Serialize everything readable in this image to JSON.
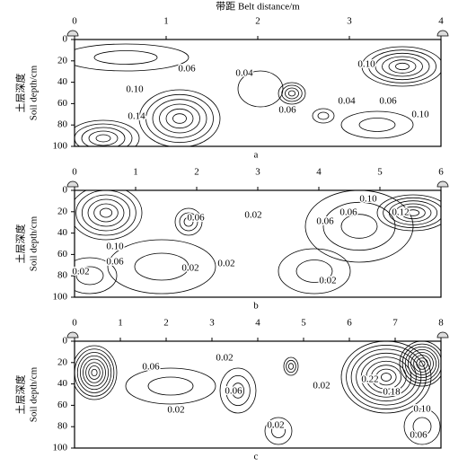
{
  "chart_data": [
    {
      "type": "contour",
      "x_label": "带距 Belt distance/m",
      "y_label": "土层深度",
      "y_label_en": "Soil depth/cm",
      "panel_label": "a",
      "xlim": [
        0,
        4
      ],
      "xticks": [
        0,
        1,
        2,
        3,
        4
      ],
      "ylim": [
        0,
        100
      ],
      "yticks": [
        0,
        20,
        40,
        60,
        80,
        100
      ],
      "values": [
        0.06,
        0.04,
        0.1,
        0.14,
        0.06,
        0.04,
        0.06,
        0.1,
        0.1
      ],
      "value_labels": [
        "0.06",
        "0.04",
        "0.10",
        "0.14",
        "0.06",
        "0.04",
        "0.06",
        "0.10",
        "0.10"
      ]
    },
    {
      "type": "contour",
      "y_label": "土层深度",
      "y_label_en": "Soil depth/cm",
      "panel_label": "b",
      "xlim": [
        0,
        6
      ],
      "xticks": [
        0,
        1,
        2,
        3,
        4,
        5,
        6
      ],
      "ylim": [
        0,
        100
      ],
      "yticks": [
        0,
        20,
        40,
        60,
        80,
        100
      ],
      "values": [
        0.06,
        0.02,
        0.06,
        0.06,
        0.1,
        0.12,
        0.1,
        0.06,
        0.02,
        0.02,
        0.02,
        0.02
      ],
      "value_labels": [
        "0.06",
        "0.02",
        "0.06",
        "0.06",
        "0.10",
        "0.12",
        "0.10",
        "0.06",
        "0.02",
        "0.02",
        "0.02",
        "0.02"
      ]
    },
    {
      "type": "contour",
      "y_label": "土层深度",
      "y_label_en": "Soil depth/cm",
      "panel_label": "c",
      "xlim": [
        0,
        8
      ],
      "xticks": [
        0,
        1,
        2,
        3,
        4,
        5,
        6,
        7,
        8
      ],
      "ylim": [
        0,
        100
      ],
      "yticks": [
        0,
        20,
        40,
        60,
        80,
        100
      ],
      "values": [
        0.02,
        0.06,
        0.06,
        0.02,
        0.02,
        0.22,
        0.18,
        0.1,
        0.02,
        0.06
      ],
      "value_labels": [
        "0.02",
        "0.06",
        "0.06",
        "0.02",
        "0.02",
        "0.22",
        "0.18",
        "0.10",
        "0.02",
        "0.06"
      ]
    }
  ]
}
